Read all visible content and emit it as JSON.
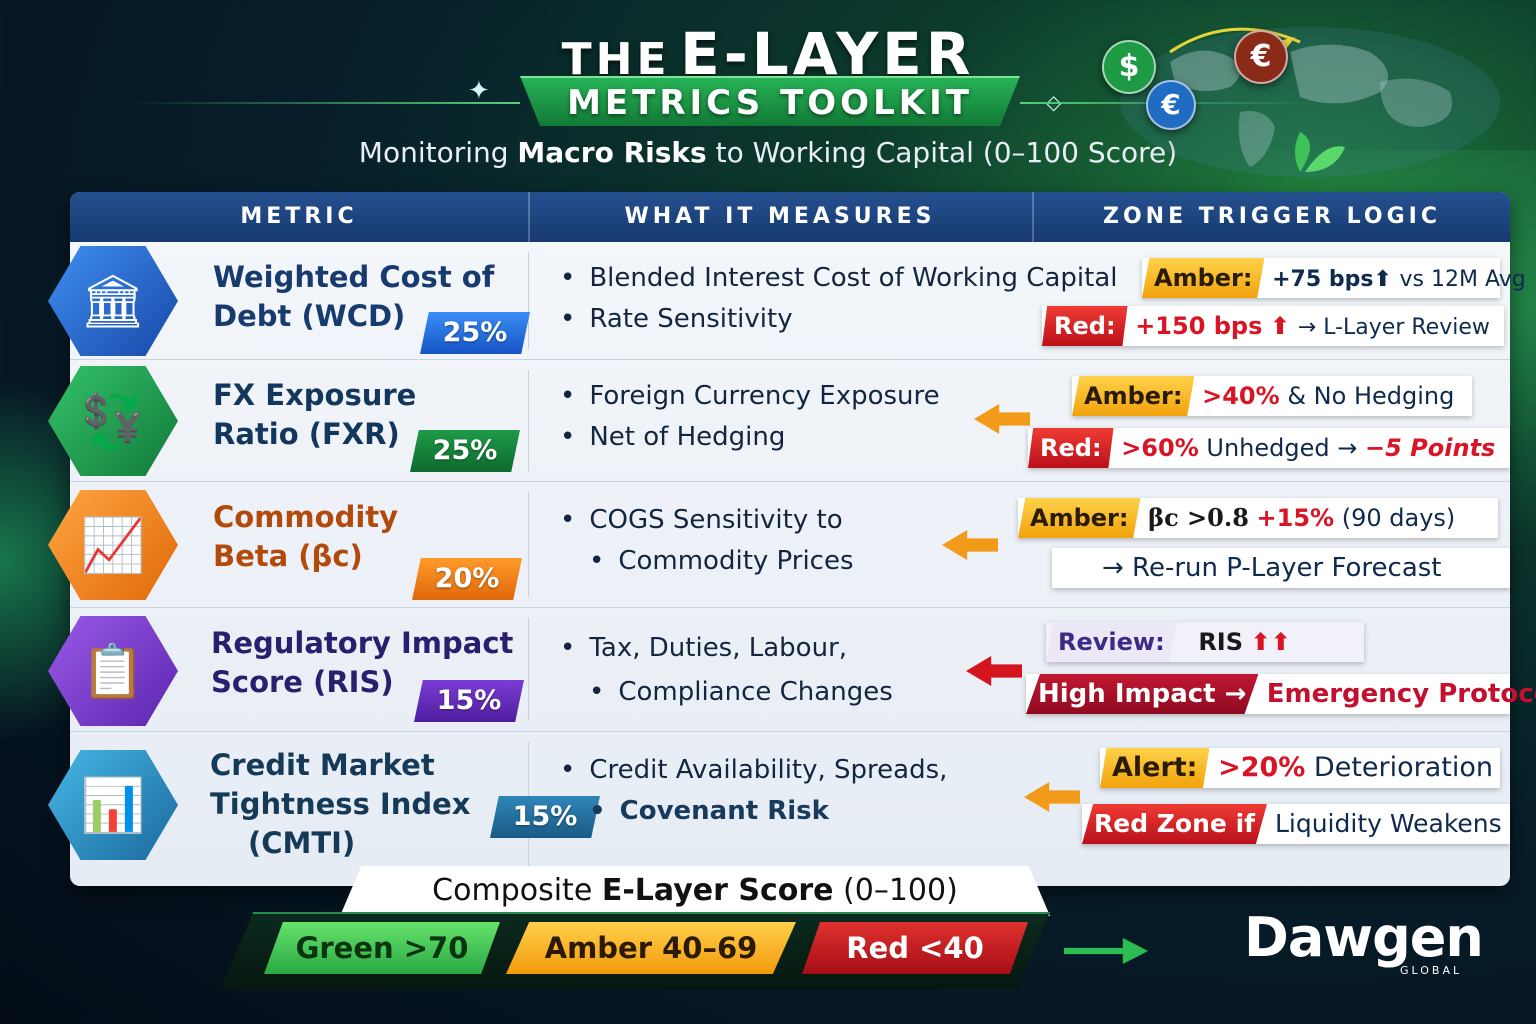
{
  "header": {
    "title_the": "THE",
    "title_main": "E-LAYER",
    "ribbon": "METRICS TOOLKIT",
    "subtitle_pre": "Monitoring",
    "subtitle_bold": "Macro Risks",
    "subtitle_post": "to Working Capital (0–100 Score)"
  },
  "globe_coins": [
    {
      "symbol": "$",
      "color": "#1e9a45"
    },
    {
      "symbol": "€",
      "color": "#8a2b18"
    },
    {
      "symbol": "€",
      "color": "#1f6cc2"
    }
  ],
  "table": {
    "columns": [
      "METRIC",
      "WHAT IT MEASURES",
      "ZONE TRIGGER LOGIC"
    ],
    "rows": [
      {
        "name_line1": "Weighted Cost of",
        "name_line2": "Debt (WCD)",
        "name_line3": "",
        "icon": "bank-coins-icon",
        "weight": "25%",
        "name_color": "#173a6f",
        "accent": "#1f6cd1",
        "bullets": [
          "Blended Interest Cost of Working Capital",
          "Rate Sensitivity"
        ],
        "z1_tag": "Amber:",
        "z1_a": "+75 bps",
        "z1_arrow": "⬆",
        "z1_b": "vs 12M Avg",
        "z2_tag": "Red:",
        "z2_a": "+150 bps",
        "z2_arrow": "⬆",
        "z2_b": "→ L-Layer Review"
      },
      {
        "name_line1": "FX Exposure",
        "name_line2": "Ratio (FXR)",
        "name_line3": "",
        "icon": "currency-exchange-icon",
        "weight": "25%",
        "name_color": "#13365c",
        "accent": "#1a8a3c",
        "bullets": [
          "Foreign Currency Exposure",
          "Net of Hedging"
        ],
        "z1_tag": "Amber:",
        "z1_a": ">40%",
        "z1_b": "& No Hedging",
        "z2_tag": "Red:",
        "z2_a": ">60%",
        "z2_b": "Unhedged",
        "z2_c": "→",
        "z2_d": "−5 Points"
      },
      {
        "name_line1": "Commodity",
        "name_line2": "Beta (βc)",
        "name_line3": "",
        "icon": "commodity-chart-icon",
        "weight": "20%",
        "name_color": "#b24a0c",
        "accent": "#f07a10",
        "bullets": [
          "COGS Sensitivity to",
          "Commodity Prices"
        ],
        "z1_tag": "Amber:",
        "z1_a": "βc >0.8",
        "z1_b": "+15%",
        "z1_c": "(90 days)",
        "z2_b": "→ Re-run P-Layer Forecast"
      },
      {
        "name_line1": "Regulatory Impact",
        "name_line2": "Score (RIS)",
        "name_line3": "",
        "icon": "clipboard-gavel-icon",
        "weight": "15%",
        "name_color": "#2a1f6e",
        "accent": "#6a32c2",
        "bullets": [
          "Tax, Duties, Labour,",
          "Compliance Changes"
        ],
        "z1_tag": "Review:",
        "z1_a": "RIS",
        "z1_arrow": "⬆⬆",
        "z2_tag": "High Impact →",
        "z2_b": "Emergency Protocol"
      },
      {
        "name_line1": "Credit Market",
        "name_line2": "Tightness Index",
        "name_line3": "(CMTI)",
        "icon": "credit-growth-chart-icon",
        "weight": "15%",
        "name_color": "#143a58",
        "accent": "#2e7fae",
        "bullets": [
          "Credit Availability, Spreads,",
          "Covenant Risk"
        ],
        "z1_tag": "Alert:",
        "z1_a": ">20%",
        "z1_b": "Deterioration",
        "z2_tag": "Red Zone if",
        "z2_b": "Liquidity Weakens"
      }
    ]
  },
  "composite": {
    "pre": "Composite",
    "bold": "E-Layer Score",
    "post": "(0–100)"
  },
  "legend": [
    {
      "label": "Green >70",
      "color": "#2aa844"
    },
    {
      "label": "Amber 40–69",
      "color": "#f39a0d"
    },
    {
      "label": "Red <40",
      "color": "#a50d16"
    }
  ],
  "brand": {
    "name": "Dawgen",
    "sub": "GLOBAL"
  }
}
